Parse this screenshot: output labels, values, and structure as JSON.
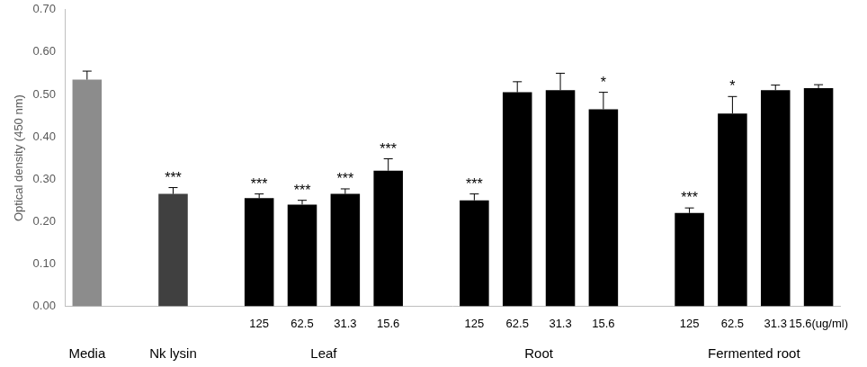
{
  "chart_data": {
    "type": "bar",
    "y_label": "Optical density (450 nm)",
    "ylim": [
      0,
      0.7
    ],
    "yticks": [
      {
        "value": 0,
        "label": "0.00"
      },
      {
        "value": 0.1,
        "label": "0.10"
      },
      {
        "value": 0.2,
        "label": "0.20"
      },
      {
        "value": 0.3,
        "label": "0.30"
      },
      {
        "value": 0.4,
        "label": "0.40"
      },
      {
        "value": 0.5,
        "label": "0.50"
      },
      {
        "value": 0.6,
        "label": "0.60"
      },
      {
        "value": 0.7,
        "label": "0.70"
      }
    ],
    "grid": false,
    "groups": [
      {
        "name": "Media",
        "color": "#8c8c8c",
        "categories": [
          null
        ],
        "values": [
          0.535
        ],
        "errors": [
          0.02
        ],
        "significance": [
          null
        ]
      },
      {
        "name": "Nk lysin",
        "color": "#404040",
        "categories": [
          null
        ],
        "values": [
          0.265
        ],
        "errors": [
          0.015
        ],
        "significance": [
          "***"
        ]
      },
      {
        "name": "Leaf",
        "color": "#000000",
        "categories": [
          "125",
          "62.5",
          "31.3",
          "15.6"
        ],
        "values": [
          0.255,
          0.24,
          0.265,
          0.32
        ],
        "errors": [
          0.01,
          0.01,
          0.012,
          0.028
        ],
        "significance": [
          "***",
          "***",
          "***",
          "***"
        ]
      },
      {
        "name": "Root",
        "color": "#000000",
        "categories": [
          "125",
          "62.5",
          "31.3",
          "15.6"
        ],
        "values": [
          0.25,
          0.505,
          0.51,
          0.465
        ],
        "errors": [
          0.015,
          0.025,
          0.04,
          0.04
        ],
        "significance": [
          "***",
          null,
          null,
          "*"
        ]
      },
      {
        "name": "Fermented root",
        "color": "#000000",
        "categories": [
          "125",
          "62.5",
          "31.3",
          "15.6(ug/ml)"
        ],
        "values": [
          0.22,
          0.455,
          0.51,
          0.515
        ],
        "errors": [
          0.012,
          0.04,
          0.012,
          0.008
        ],
        "significance": [
          "***",
          "*",
          null,
          null
        ]
      }
    ]
  }
}
